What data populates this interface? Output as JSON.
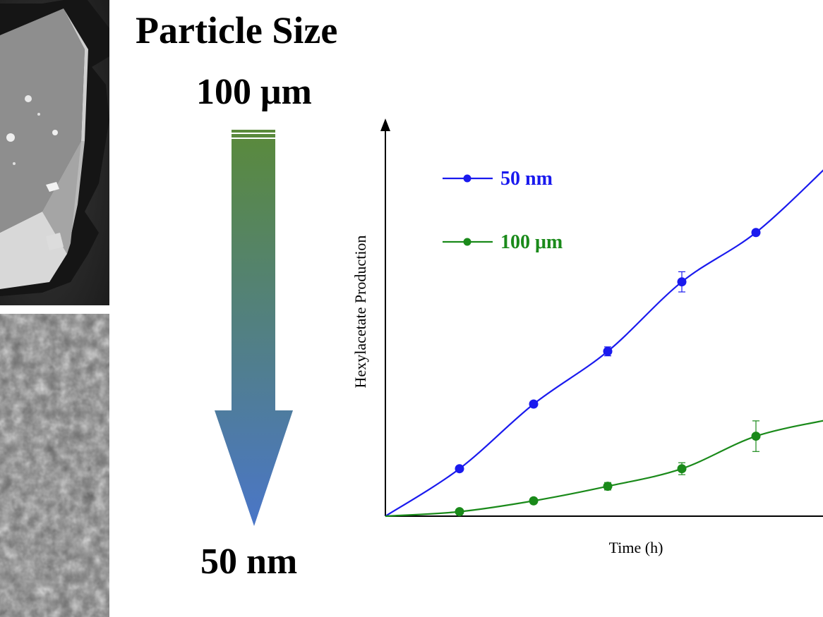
{
  "figure": {
    "title": "Particle Size",
    "size_large_label": "100 μm",
    "size_small_label": "50 nm",
    "arrow_colors": [
      "#5a8a3a",
      "#4a76c8"
    ]
  },
  "chart_data": {
    "type": "line",
    "xlabel": "Time (h)",
    "ylabel": "Hexylacetate Production",
    "xlim": [
      0,
      6
    ],
    "ylim": [
      0,
      10
    ],
    "grid": false,
    "legend_position": "top-left",
    "series": [
      {
        "name": "50 nm",
        "color": "#1a1aee",
        "points": [
          {
            "x": 0,
            "y": 0
          },
          {
            "x": 1,
            "y": 1.27
          },
          {
            "x": 2,
            "y": 3.0
          },
          {
            "x": 3,
            "y": 4.41,
            "err": 0.12
          },
          {
            "x": 4,
            "y": 6.27,
            "err": 0.27
          },
          {
            "x": 5,
            "y": 7.59
          }
        ],
        "fit_end": [
          6,
          9.43
        ]
      },
      {
        "name": "100 μm",
        "color": "#1a8a1a",
        "points": [
          {
            "x": 0,
            "y": 0
          },
          {
            "x": 1,
            "y": 0.12
          },
          {
            "x": 2,
            "y": 0.41
          },
          {
            "x": 3,
            "y": 0.8,
            "err": 0.1
          },
          {
            "x": 4,
            "y": 1.27,
            "err": 0.16
          },
          {
            "x": 5,
            "y": 2.14,
            "err": 0.41
          }
        ],
        "fit_end": [
          6,
          2.59
        ]
      }
    ]
  }
}
